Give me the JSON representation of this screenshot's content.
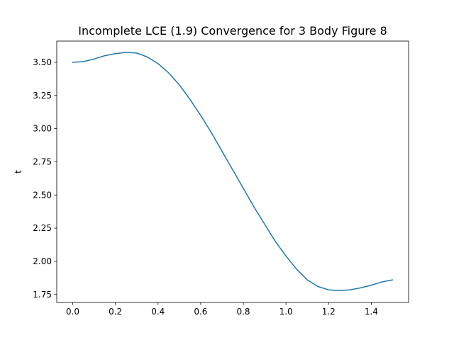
{
  "chart_data": {
    "type": "line",
    "title": "Incomplete LCE (1.9) Convergence for 3 Body Figure 8",
    "xlabel": "",
    "ylabel": "t",
    "xlim": [
      -0.075,
      1.575
    ],
    "ylim": [
      1.69,
      3.66
    ],
    "grid": false,
    "x_ticks": [
      0.0,
      0.2,
      0.4,
      0.6,
      0.8,
      1.0,
      1.2,
      1.4
    ],
    "x_tick_labels": [
      "0.0",
      "0.2",
      "0.4",
      "0.6",
      "0.8",
      "1.0",
      "1.2",
      "1.4"
    ],
    "y_ticks": [
      1.75,
      2.0,
      2.25,
      2.5,
      2.75,
      3.0,
      3.25,
      3.5
    ],
    "y_tick_labels": [
      "1.75",
      "2.00",
      "2.25",
      "2.50",
      "2.75",
      "3.00",
      "3.25",
      "3.50"
    ],
    "series": [
      {
        "name": "",
        "color": "#1f77b4",
        "x": [
          0.0,
          0.05,
          0.1,
          0.15,
          0.2,
          0.25,
          0.3,
          0.35,
          0.4,
          0.45,
          0.5,
          0.55,
          0.6,
          0.65,
          0.7,
          0.75,
          0.8,
          0.85,
          0.9,
          0.95,
          1.0,
          1.05,
          1.1,
          1.15,
          1.2,
          1.25,
          1.3,
          1.35,
          1.4,
          1.45,
          1.5
        ],
        "y": [
          3.5,
          3.505,
          3.525,
          3.55,
          3.565,
          3.575,
          3.57,
          3.54,
          3.49,
          3.42,
          3.33,
          3.22,
          3.1,
          2.97,
          2.83,
          2.69,
          2.55,
          2.41,
          2.28,
          2.15,
          2.04,
          1.94,
          1.86,
          1.81,
          1.785,
          1.78,
          1.785,
          1.8,
          1.82,
          1.845,
          1.86
        ]
      }
    ]
  }
}
